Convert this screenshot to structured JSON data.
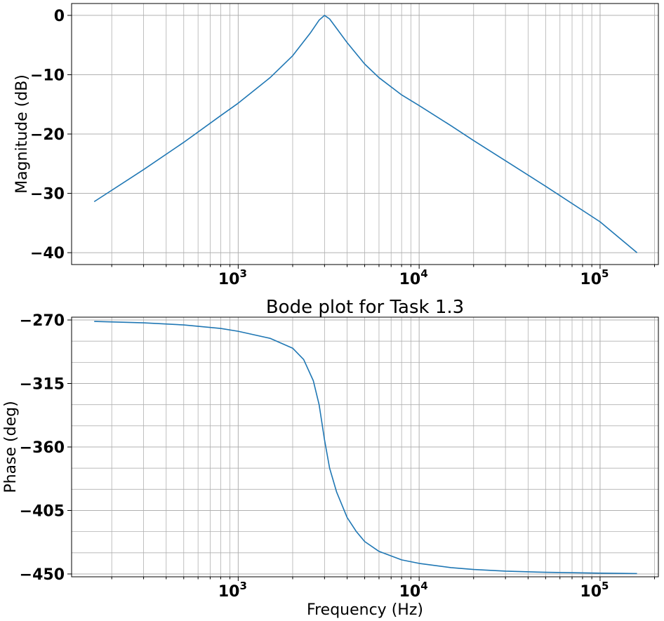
{
  "colors": {
    "line": "#1f77b4",
    "grid": "#b0b0b0",
    "axes": "#000000"
  },
  "chart_data": [
    {
      "type": "line",
      "title": "",
      "xlabel": "",
      "ylabel": "Magnitude (dB)",
      "xscale": "log",
      "grid": "both",
      "xlim": [
        120,
        210000
      ],
      "ylim": [
        -42,
        2
      ],
      "yticks": [
        0,
        -10,
        -20,
        -30,
        -40
      ],
      "ytick_labels": [
        "0",
        "−10",
        "−20",
        "−30",
        "−40"
      ],
      "xticks": [
        1000,
        10000,
        100000
      ],
      "xtick_labels": [
        {
          "base": "10",
          "exp": "3"
        },
        {
          "base": "10",
          "exp": "4"
        },
        {
          "base": "10",
          "exp": "5"
        }
      ],
      "series": [
        {
          "x": [
            160,
            300,
            500,
            800,
            1000,
            1500,
            2000,
            2500,
            2800,
            3000,
            3200,
            3500,
            4000,
            5000,
            6000,
            8000,
            10000,
            15000,
            20000,
            30000,
            50000,
            100000,
            160000
          ],
          "y": [
            -31.4,
            -26.0,
            -21.4,
            -16.9,
            -14.8,
            -10.5,
            -6.8,
            -3.0,
            -0.8,
            0.0,
            -0.6,
            -2.2,
            -4.6,
            -8.2,
            -10.5,
            -13.4,
            -15.2,
            -18.6,
            -21.1,
            -24.5,
            -28.8,
            -34.8,
            -40.0
          ]
        }
      ]
    },
    {
      "type": "line",
      "title": "Bode plot for Task 1.3",
      "xlabel": "Frequency (Hz)",
      "ylabel": "Phase (deg)",
      "xscale": "log",
      "grid": "both",
      "xlim": [
        120,
        210000
      ],
      "ylim": [
        -452,
        -268
      ],
      "yticks": [
        -270,
        -315,
        -360,
        -405,
        -450
      ],
      "ytick_labels": [
        "−270",
        "−315",
        "−360",
        "−405",
        "−450"
      ],
      "xticks": [
        1000,
        10000,
        100000
      ],
      "xtick_labels": [
        {
          "base": "10",
          "exp": "3"
        },
        {
          "base": "10",
          "exp": "4"
        },
        {
          "base": "10",
          "exp": "5"
        }
      ],
      "series": [
        {
          "x": [
            160,
            300,
            500,
            800,
            1000,
            1500,
            2000,
            2300,
            2600,
            2800,
            3000,
            3200,
            3500,
            4000,
            4500,
            5000,
            6000,
            8000,
            10000,
            15000,
            20000,
            30000,
            50000,
            100000,
            160000
          ],
          "y": [
            -271.0,
            -272.0,
            -273.5,
            -276.0,
            -278.0,
            -283.0,
            -290.0,
            -298.0,
            -313.0,
            -330.0,
            -355.0,
            -375.0,
            -392.0,
            -410.0,
            -420.0,
            -427.0,
            -434.0,
            -440.0,
            -442.5,
            -445.5,
            -446.8,
            -448.0,
            -448.8,
            -449.4,
            -449.7
          ]
        }
      ]
    }
  ]
}
